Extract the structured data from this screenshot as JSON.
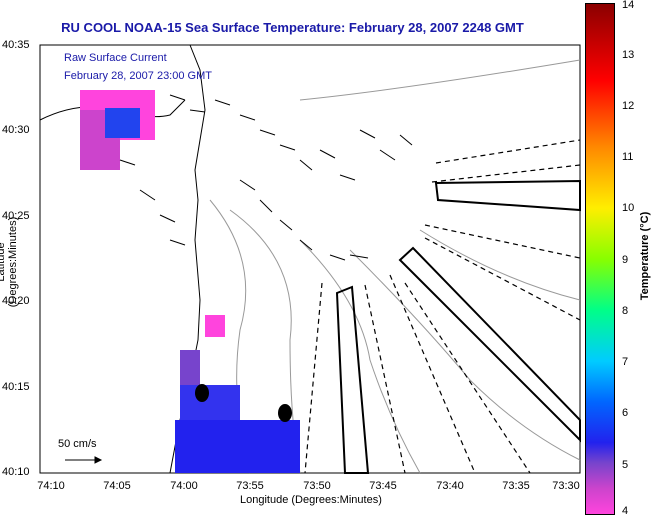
{
  "title": "RU COOL  NOAA-15  Sea Surface Temperature:  February 28, 2007 2248 GMT",
  "legend": {
    "line1": "Raw Surface Current",
    "line2": "February 28, 2007 23:00 GMT"
  },
  "scale_vector_label": "50 cm/s",
  "axes": {
    "xlabel": "Longitude (Degrees:Minutes)",
    "ylabel": "Latitude (Degrees:Minutes)",
    "x_ticks": [
      "74:10",
      "74:05",
      "74:00",
      "73:55",
      "73:50",
      "73:45",
      "73:40",
      "73:35",
      "73:30"
    ],
    "y_ticks": [
      "40:35",
      "40:30",
      "40:25",
      "40:20",
      "40:15",
      "40:10"
    ]
  },
  "colorbar": {
    "label": "Temperature (°C)",
    "ticks": [
      "14",
      "13",
      "12",
      "11",
      "10",
      "9",
      "8",
      "7",
      "6",
      "5",
      "4"
    ],
    "range": [
      4,
      14
    ]
  },
  "colors": {
    "title": "#1a1aa8",
    "legend": "#1a1aa8",
    "cold": "#2222ee",
    "warm_edge": "#ff44dd"
  }
}
